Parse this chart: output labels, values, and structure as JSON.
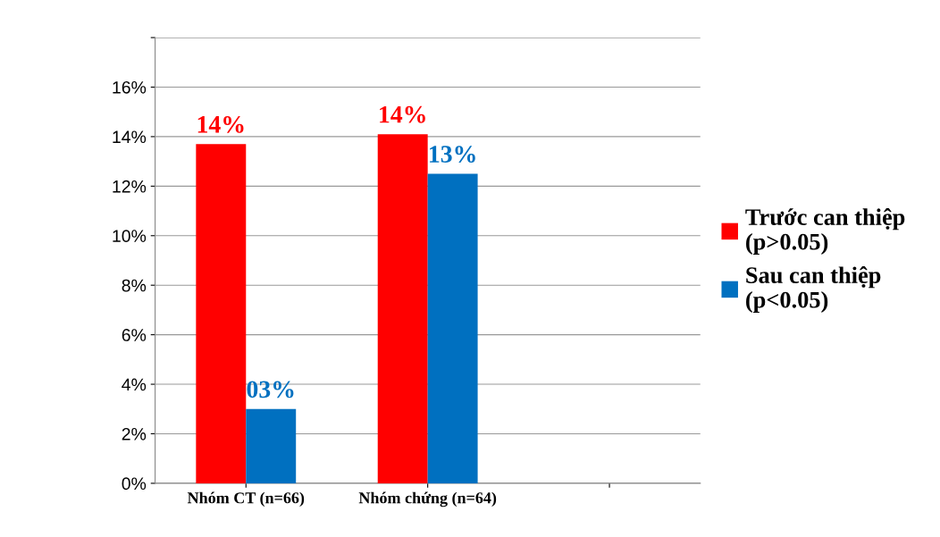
{
  "chart_data": {
    "type": "bar",
    "categories": [
      "Nhóm CT (n=66)",
      "Nhóm chứng (n=64)",
      null
    ],
    "series": [
      {
        "name": "Trước can thiệp\n(p>0.05)",
        "color": "#ff0000",
        "values": [
          13.7,
          14.1,
          null
        ],
        "value_labels": [
          "14%",
          "14%",
          null
        ]
      },
      {
        "name": "Sau can thiệp\n(p<0.05)",
        "color": "#0070c0",
        "values": [
          3.0,
          12.5,
          null
        ],
        "value_labels": [
          "03%",
          "13%",
          null
        ]
      }
    ],
    "ylim": [
      0,
      18
    ],
    "yticks": [
      {
        "value": 0,
        "label": "0%"
      },
      {
        "value": 2,
        "label": "2%"
      },
      {
        "value": 4,
        "label": "4%"
      },
      {
        "value": 6,
        "label": "6%"
      },
      {
        "value": 8,
        "label": "8%"
      },
      {
        "value": 10,
        "label": "10%"
      },
      {
        "value": 12,
        "label": "12%"
      },
      {
        "value": 14,
        "label": "14%"
      },
      {
        "value": 16,
        "label": "16%"
      },
      {
        "value": 18,
        "label": null
      }
    ],
    "grid": "y",
    "legend": "right"
  }
}
